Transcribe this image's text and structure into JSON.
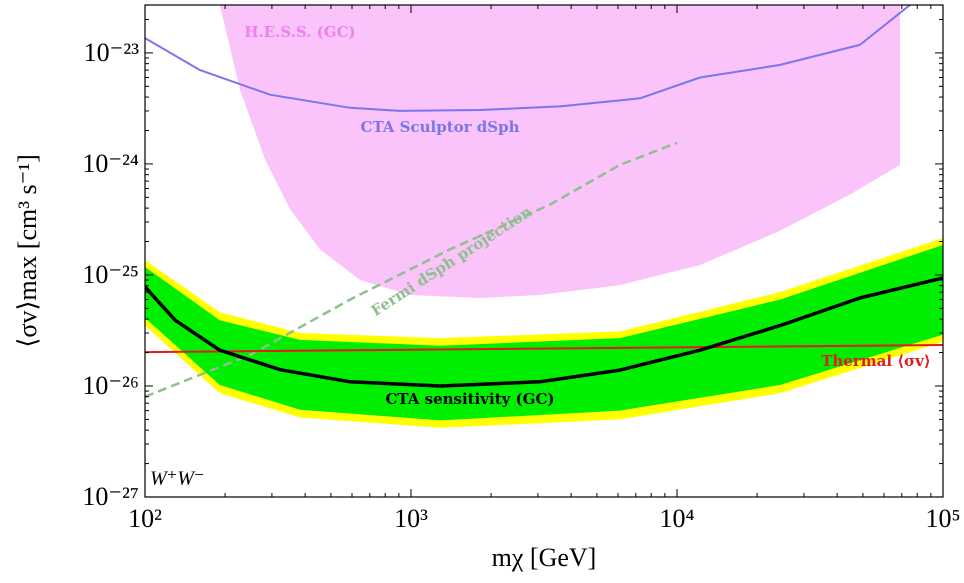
{
  "chart_data": {
    "type": "line",
    "x_label": "mχ [GeV]",
    "y_label": "⟨σv⟩max [cm³ s⁻¹]",
    "log_x": true,
    "log_y": true,
    "xlim": [
      100,
      100000
    ],
    "ylim": [
      1e-27,
      2.7e-23
    ],
    "xticks": [
      {
        "value": 100,
        "label": "10²"
      },
      {
        "value": 1000,
        "label": "10³"
      },
      {
        "value": 10000,
        "label": "10⁴"
      },
      {
        "value": 100000,
        "label": "10⁵"
      }
    ],
    "yticks": [
      {
        "value": 1e-27,
        "label": "10⁻²⁷"
      },
      {
        "value": 1e-26,
        "label": "10⁻²⁶"
      },
      {
        "value": 1e-25,
        "label": "10⁻²⁵"
      },
      {
        "value": 1e-24,
        "label": "10⁻²⁴"
      },
      {
        "value": 1e-23,
        "label": "10⁻²³"
      }
    ],
    "bands": [
      {
        "name": "H.E.S.S. (GC)",
        "color": "#fac4fa",
        "x": [
          191,
          228,
          283,
          351,
          455,
          643,
          991,
          1815,
          3050,
          6100,
          12200,
          24400,
          44700,
          68900
        ],
        "lower": [
          2.7e-23,
          4.6e-24,
          1.09e-24,
          3.9e-25,
          1.7e-25,
          9e-26,
          6.6e-26,
          6.2e-26,
          6.6e-26,
          8.1e-26,
          1.23e-25,
          2.5e-25,
          5.3e-25,
          9.8e-25
        ],
        "upper": [
          2.7e-23,
          2.7e-23,
          2.7e-23,
          2.7e-23,
          2.7e-23,
          2.7e-23,
          2.7e-23,
          2.7e-23,
          2.7e-23,
          2.7e-23,
          2.7e-23,
          2.7e-23,
          2.7e-23,
          2.7e-23
        ]
      },
      {
        "color": "#ffff00",
        "x": [
          100,
          191,
          383,
          1290,
          6100,
          24400,
          100000
        ],
        "lower": [
          3.5e-26,
          8.6e-27,
          5.2e-27,
          4.2e-27,
          5e-27,
          8.6e-27,
          2.5e-26
        ],
        "upper": [
          1.36e-25,
          4.6e-26,
          3e-26,
          2.7e-26,
          3.1e-26,
          7e-26,
          2.15e-25
        ]
      },
      {
        "color": "#00ee00",
        "x": [
          100,
          191,
          383,
          1290,
          6100,
          24400,
          100000
        ],
        "lower": [
          4.1e-26,
          1.02e-26,
          6.1e-27,
          4.9e-27,
          6e-27,
          1.02e-26,
          2.9e-26
        ],
        "upper": [
          1.18e-25,
          3.9e-26,
          2.6e-26,
          2.3e-26,
          2.7e-26,
          6e-26,
          1.86e-25
        ]
      }
    ],
    "series": [
      {
        "name": "CTA Sculptor dSph",
        "color": "#7b75ec",
        "dashed": false,
        "width": 2,
        "x": [
          100,
          161,
          295,
          590,
          910,
          1815,
          3630,
          7260,
          12200,
          24400,
          48700,
          75100
        ],
        "values": [
          1.36e-23,
          7e-24,
          4.2e-24,
          3.2e-24,
          3e-24,
          3.06e-24,
          3.3e-24,
          3.9e-24,
          6e-24,
          7.8e-24,
          1.18e-23,
          2.7e-23
        ]
      },
      {
        "name": "Fermi dSph projection",
        "color": "#8fbf8f",
        "dashed": true,
        "width": 2.5,
        "x": [
          100,
          248,
          590,
          1400,
          3330,
          6100,
          10000
        ],
        "values": [
          8e-27,
          1.9e-26,
          6e-26,
          1.7e-25,
          4.3e-25,
          9.8e-25,
          1.55e-24
        ]
      },
      {
        "name": "Thermal ⟨σv⟩",
        "color": "#e41a1c",
        "dashed": false,
        "width": 2,
        "x": [
          100,
          100000
        ],
        "values": [
          2.02e-26,
          2.34e-26
        ]
      },
      {
        "name": "CTA sensitivity (GC)",
        "color": "#000000",
        "dashed": false,
        "width": 3.5,
        "x": [
          100,
          130,
          191,
          322,
          590,
          1290,
          3050,
          6100,
          12200,
          24400,
          48700,
          100000
        ],
        "values": [
          7.8e-26,
          3.9e-26,
          2.1e-26,
          1.4e-26,
          1.09e-26,
          1e-26,
          1.09e-26,
          1.39e-26,
          2.1e-26,
          3.5e-26,
          6.2e-26,
          9.4e-26
        ]
      }
    ],
    "channel": "W⁺W⁻"
  }
}
